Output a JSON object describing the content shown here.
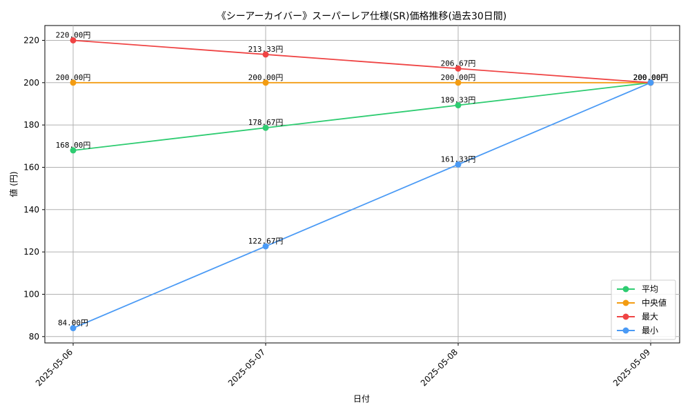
{
  "chart_data": {
    "type": "line",
    "title": "《シーアーカイバー》スーパーレア仕様(SR)価格推移(過去30日間)",
    "xlabel": "日付",
    "ylabel": "値 (円)",
    "categories": [
      "2025-05-06",
      "2025-05-07",
      "2025-05-08",
      "2025-05-09"
    ],
    "ylim": [
      77,
      227
    ],
    "yticks": [
      80,
      100,
      120,
      140,
      160,
      180,
      200,
      220
    ],
    "grid": true,
    "legend_position": "bottom-right",
    "series": [
      {
        "name": "平均",
        "color": "#2ecc71",
        "values": [
          168.0,
          178.67,
          189.33,
          200.0
        ],
        "labels": [
          "168.00円",
          "178.67円",
          "189.33円",
          "200.00円"
        ]
      },
      {
        "name": "中央値",
        "color": "#f39c12",
        "values": [
          200.0,
          200.0,
          200.0,
          200.0
        ],
        "labels": [
          "200.00円",
          "200.00円",
          "200.00円",
          "200.00円"
        ]
      },
      {
        "name": "最大",
        "color": "#ef4444",
        "values": [
          220.0,
          213.33,
          206.67,
          200.0
        ],
        "labels": [
          "220.00円",
          "213.33円",
          "206.67円",
          "200.00円"
        ]
      },
      {
        "name": "最小",
        "color": "#4a9af5",
        "values": [
          84.0,
          122.67,
          161.33,
          200.0
        ],
        "labels": [
          "84.00円",
          "122.67円",
          "161.33円",
          "200.00円"
        ]
      }
    ]
  }
}
